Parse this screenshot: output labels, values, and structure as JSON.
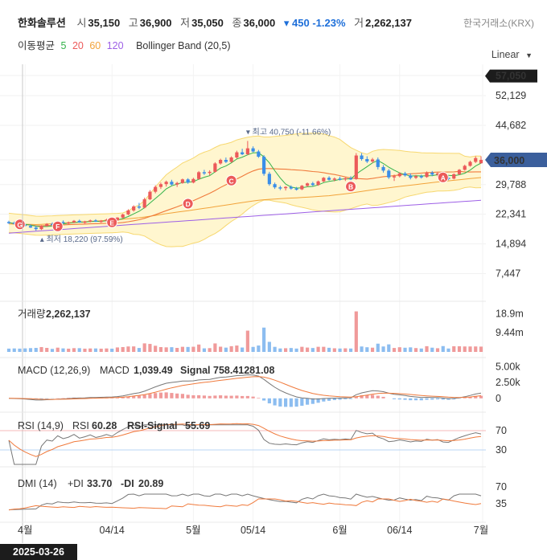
{
  "header": {
    "name": "한화솔루션",
    "open_label": "시",
    "open": "35,150",
    "high_label": "고",
    "high": "36,900",
    "low_label": "저",
    "low": "35,050",
    "close_label": "종",
    "close": "36,000",
    "change": "▾ 450",
    "change_pct": "-1.23%",
    "volume_label": "거",
    "volume": "2,262,137",
    "exchange": "한국거래소(KRX)"
  },
  "ma_legend": {
    "label": "이동평균",
    "p5": "5",
    "p20": "20",
    "p60": "60",
    "p120": "120",
    "bb": "Bollinger Band (20,5)"
  },
  "scale_selector": "Linear",
  "colors": {
    "up": "#ec5a5a",
    "down": "#3b8ee8",
    "ma5": "#34b34a",
    "ma20": "#f07a3c",
    "ma60": "#f2a33a",
    "ma120": "#9d5fe6",
    "bb_fill": "#fff6cf",
    "bb_line": "#f7d870"
  },
  "chart_data": [
    {
      "type": "candlestick",
      "panel": "price",
      "y_ticks": [
        "57,050",
        "52,129",
        "44,682",
        "36,000",
        "29,788",
        "22,341",
        "14,894",
        "7,447"
      ],
      "ylim": [
        2500,
        59000
      ],
      "last_price_label": "36,000",
      "top_label": "57,050",
      "annotations": {
        "high": {
          "label": "▾ 최고  40,750 (-11.66%)",
          "value": 40750
        },
        "low": {
          "label": "▴ 최저  18,220 (97.59%)",
          "value": 18220
        }
      },
      "signal_markers": [
        "G",
        "F",
        "E",
        "D",
        "C",
        "B",
        "A"
      ],
      "x_labels": [
        "4월",
        "04/14",
        "5월",
        "05/14",
        "6월",
        "06/14",
        "7월"
      ],
      "candles": [
        {
          "o": 20400,
          "h": 20700,
          "l": 19900,
          "c": 20200
        },
        {
          "o": 20200,
          "h": 20500,
          "l": 19800,
          "c": 19900
        },
        {
          "o": 19900,
          "h": 20300,
          "l": 19500,
          "c": 19700
        },
        {
          "o": 19700,
          "h": 20100,
          "l": 19300,
          "c": 19400
        },
        {
          "o": 19400,
          "h": 19800,
          "l": 18900,
          "c": 19000
        },
        {
          "o": 19000,
          "h": 19500,
          "l": 18220,
          "c": 18600
        },
        {
          "o": 18600,
          "h": 19600,
          "l": 18400,
          "c": 19400
        },
        {
          "o": 19400,
          "h": 20100,
          "l": 19200,
          "c": 19900
        },
        {
          "o": 19900,
          "h": 20300,
          "l": 19600,
          "c": 19800
        },
        {
          "o": 19800,
          "h": 20600,
          "l": 19700,
          "c": 20400
        },
        {
          "o": 20400,
          "h": 20800,
          "l": 20000,
          "c": 20100
        },
        {
          "o": 20100,
          "h": 20500,
          "l": 19800,
          "c": 20300
        },
        {
          "o": 20300,
          "h": 20900,
          "l": 20100,
          "c": 20700
        },
        {
          "o": 20700,
          "h": 21000,
          "l": 20200,
          "c": 20300
        },
        {
          "o": 20300,
          "h": 20700,
          "l": 20000,
          "c": 20500
        },
        {
          "o": 20500,
          "h": 21000,
          "l": 20300,
          "c": 20800
        },
        {
          "o": 20800,
          "h": 21100,
          "l": 20400,
          "c": 20500
        },
        {
          "o": 20500,
          "h": 20900,
          "l": 20200,
          "c": 20700
        },
        {
          "o": 20700,
          "h": 21200,
          "l": 20500,
          "c": 21000
        },
        {
          "o": 21000,
          "h": 21300,
          "l": 20600,
          "c": 20800
        },
        {
          "o": 20800,
          "h": 21600,
          "l": 20700,
          "c": 21500
        },
        {
          "o": 21500,
          "h": 22500,
          "l": 21300,
          "c": 22300
        },
        {
          "o": 22300,
          "h": 23600,
          "l": 22100,
          "c": 23300
        },
        {
          "o": 23300,
          "h": 24600,
          "l": 23000,
          "c": 24300
        },
        {
          "o": 24300,
          "h": 25200,
          "l": 23600,
          "c": 24000
        },
        {
          "o": 24000,
          "h": 26500,
          "l": 23800,
          "c": 26100
        },
        {
          "o": 26100,
          "h": 28400,
          "l": 25900,
          "c": 28000
        },
        {
          "o": 28000,
          "h": 29600,
          "l": 27600,
          "c": 29200
        },
        {
          "o": 29200,
          "h": 30300,
          "l": 28700,
          "c": 29900
        },
        {
          "o": 29900,
          "h": 30800,
          "l": 29300,
          "c": 30500
        },
        {
          "o": 30500,
          "h": 31000,
          "l": 29600,
          "c": 29800
        },
        {
          "o": 29800,
          "h": 30500,
          "l": 29200,
          "c": 30200
        },
        {
          "o": 30200,
          "h": 31300,
          "l": 30000,
          "c": 31100
        },
        {
          "o": 31100,
          "h": 31400,
          "l": 30000,
          "c": 30300
        },
        {
          "o": 30300,
          "h": 31500,
          "l": 30100,
          "c": 31200
        },
        {
          "o": 31200,
          "h": 33200,
          "l": 31000,
          "c": 32900
        },
        {
          "o": 32900,
          "h": 33500,
          "l": 32200,
          "c": 32700
        },
        {
          "o": 32700,
          "h": 33400,
          "l": 32100,
          "c": 33000
        },
        {
          "o": 33000,
          "h": 35400,
          "l": 32800,
          "c": 35100
        },
        {
          "o": 35100,
          "h": 36300,
          "l": 34800,
          "c": 36000
        },
        {
          "o": 36000,
          "h": 36600,
          "l": 35200,
          "c": 35500
        },
        {
          "o": 35500,
          "h": 36900,
          "l": 35300,
          "c": 36600
        },
        {
          "o": 36600,
          "h": 38300,
          "l": 36300,
          "c": 37900
        },
        {
          "o": 37900,
          "h": 38800,
          "l": 37200,
          "c": 37400
        },
        {
          "o": 37400,
          "h": 40750,
          "l": 37200,
          "c": 38900
        },
        {
          "o": 38900,
          "h": 39400,
          "l": 37900,
          "c": 38100
        },
        {
          "o": 38100,
          "h": 38500,
          "l": 36500,
          "c": 36800
        },
        {
          "o": 36800,
          "h": 37200,
          "l": 32000,
          "c": 32500
        },
        {
          "o": 32500,
          "h": 33000,
          "l": 29500,
          "c": 29900
        },
        {
          "o": 29900,
          "h": 30300,
          "l": 28700,
          "c": 29100
        },
        {
          "o": 29100,
          "h": 29500,
          "l": 28400,
          "c": 28900
        },
        {
          "o": 28900,
          "h": 29400,
          "l": 28300,
          "c": 29200
        },
        {
          "o": 29200,
          "h": 29600,
          "l": 28500,
          "c": 28800
        },
        {
          "o": 28800,
          "h": 29200,
          "l": 28300,
          "c": 28600
        },
        {
          "o": 28600,
          "h": 29700,
          "l": 28400,
          "c": 29500
        },
        {
          "o": 29500,
          "h": 30300,
          "l": 29200,
          "c": 30100
        },
        {
          "o": 30100,
          "h": 30500,
          "l": 29400,
          "c": 29700
        },
        {
          "o": 29700,
          "h": 30800,
          "l": 29500,
          "c": 30600
        },
        {
          "o": 30600,
          "h": 31700,
          "l": 30400,
          "c": 31500
        },
        {
          "o": 31500,
          "h": 31900,
          "l": 30800,
          "c": 31000
        },
        {
          "o": 31000,
          "h": 31600,
          "l": 30600,
          "c": 31300
        },
        {
          "o": 31300,
          "h": 31800,
          "l": 30800,
          "c": 31100
        },
        {
          "o": 31100,
          "h": 31600,
          "l": 30700,
          "c": 31400
        },
        {
          "o": 31400,
          "h": 31900,
          "l": 30900,
          "c": 31200
        },
        {
          "o": 31200,
          "h": 37700,
          "l": 31000,
          "c": 37100
        },
        {
          "o": 37100,
          "h": 37700,
          "l": 35800,
          "c": 36200
        },
        {
          "o": 36200,
          "h": 36900,
          "l": 35200,
          "c": 35600
        },
        {
          "o": 35600,
          "h": 36500,
          "l": 35200,
          "c": 36100
        },
        {
          "o": 36100,
          "h": 36600,
          "l": 33600,
          "c": 34200
        },
        {
          "o": 34200,
          "h": 34700,
          "l": 32800,
          "c": 33300
        },
        {
          "o": 33300,
          "h": 33700,
          "l": 31200,
          "c": 31600
        },
        {
          "o": 31600,
          "h": 32300,
          "l": 30700,
          "c": 31900
        },
        {
          "o": 31900,
          "h": 32900,
          "l": 31600,
          "c": 32600
        },
        {
          "o": 32600,
          "h": 33000,
          "l": 31800,
          "c": 32100
        },
        {
          "o": 32100,
          "h": 32600,
          "l": 31100,
          "c": 31500
        },
        {
          "o": 31500,
          "h": 32200,
          "l": 31200,
          "c": 31900
        },
        {
          "o": 31900,
          "h": 32300,
          "l": 31300,
          "c": 31700
        },
        {
          "o": 31700,
          "h": 33100,
          "l": 31500,
          "c": 32800
        },
        {
          "o": 32800,
          "h": 33200,
          "l": 31900,
          "c": 32300
        },
        {
          "o": 32300,
          "h": 32900,
          "l": 31800,
          "c": 32600
        },
        {
          "o": 32600,
          "h": 33000,
          "l": 31200,
          "c": 31500
        },
        {
          "o": 31500,
          "h": 31900,
          "l": 30900,
          "c": 31300
        },
        {
          "o": 31300,
          "h": 32600,
          "l": 31100,
          "c": 32400
        },
        {
          "o": 32400,
          "h": 33700,
          "l": 32200,
          "c": 33500
        },
        {
          "o": 33500,
          "h": 34800,
          "l": 33300,
          "c": 34500
        },
        {
          "o": 34500,
          "h": 35800,
          "l": 34300,
          "c": 35500
        },
        {
          "o": 35500,
          "h": 36900,
          "l": 35200,
          "c": 36450
        },
        {
          "o": 35150,
          "h": 36900,
          "l": 35050,
          "c": 36000
        }
      ]
    },
    {
      "type": "bar",
      "panel": "volume",
      "label": "거래량",
      "value": "2,262,137",
      "y_ticks": [
        "18.9m",
        "9.44m"
      ],
      "ylim": [
        0,
        23000000
      ]
    },
    {
      "type": "line",
      "panel": "macd",
      "label": "MACD (12,26,9)",
      "macd_label": "MACD",
      "macd_value": "1,039.49",
      "signal_label": "Signal",
      "signal_value": "758.41281.08",
      "y_ticks": [
        "5.00k",
        "2.50k",
        "0"
      ],
      "ylim": [
        -1800,
        5800
      ]
    },
    {
      "type": "line",
      "panel": "rsi",
      "label": "RSI (14,9)",
      "rsi_label": "RSI",
      "rsi_value": "60.28",
      "signal_label": "RSI-Signal",
      "signal_value": "55.69",
      "y_ticks": [
        "70",
        "30"
      ],
      "ylim": [
        0,
        100
      ]
    },
    {
      "type": "line",
      "panel": "dmi",
      "label": "DMI (14)",
      "pdi_label": "+DI",
      "pdi_value": "33.70",
      "mdi_label": "-DI",
      "mdi_value": "20.89",
      "y_ticks": [
        "70",
        "35"
      ],
      "ylim": [
        0,
        100
      ]
    }
  ],
  "cursor_date": "2025-03-26"
}
